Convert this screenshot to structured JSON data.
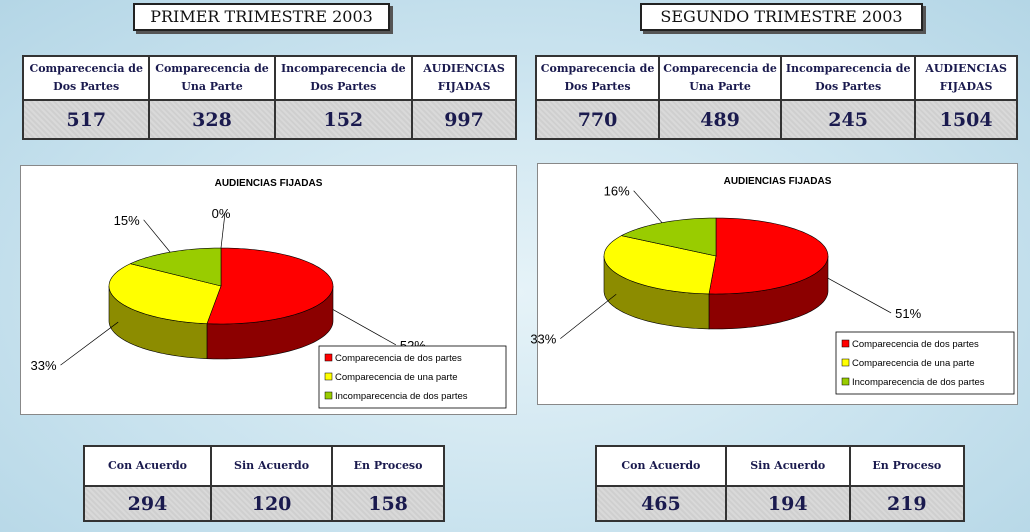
{
  "panels": [
    {
      "title": "PRIMER TRIMESTRE 2003",
      "table": {
        "headers": [
          "Comparecencia de Dos Partes",
          "Comparecencia de Una Parte",
          "Incomparecencia de Dos Partes",
          "AUDIENCIAS FIJADAS"
        ],
        "values": [
          517,
          328,
          152,
          997
        ]
      },
      "results": {
        "headers": [
          "Con Acuerdo",
          "Sin Acuerdo",
          "En Proceso"
        ],
        "values": [
          294,
          120,
          158
        ]
      }
    },
    {
      "title": "SEGUNDO TRIMESTRE 2003",
      "table": {
        "headers": [
          "Comparecencia de Dos Partes",
          "Comparecencia de Una Parte",
          "Incomparecencia de Dos Partes",
          "AUDIENCIAS FIJADAS"
        ],
        "values": [
          770,
          489,
          245,
          1504
        ]
      },
      "results": {
        "headers": [
          "Con Acuerdo",
          "Sin Acuerdo",
          "En Proceso"
        ],
        "values": [
          465,
          194,
          219
        ]
      }
    }
  ],
  "chart_data": [
    {
      "type": "pie",
      "title": "AUDIENCIAS FIJADAS",
      "categories": [
        "Comparecencia de dos partes",
        "Comparecencia de una parte",
        "Incomparecencia de dos partes",
        null
      ],
      "values": [
        52,
        33,
        15,
        0
      ],
      "value_labels": [
        "52%",
        "33%",
        "15%",
        "0%"
      ],
      "colors": [
        "#ff0000",
        "#ffff00",
        "#99cc00",
        "#9999ff"
      ],
      "legend": "bottom-right"
    },
    {
      "type": "pie",
      "title": "AUDIENCIAS FIJADAS",
      "categories": [
        "Comparecencia de dos partes",
        "Comparecencia de una parte",
        "Incomparecencia de dos partes"
      ],
      "values": [
        51,
        33,
        16
      ],
      "value_labels": [
        "51%",
        "33%",
        "16%"
      ],
      "colors": [
        "#ff0000",
        "#ffff00",
        "#99cc00"
      ],
      "legend": "bottom-right"
    }
  ]
}
